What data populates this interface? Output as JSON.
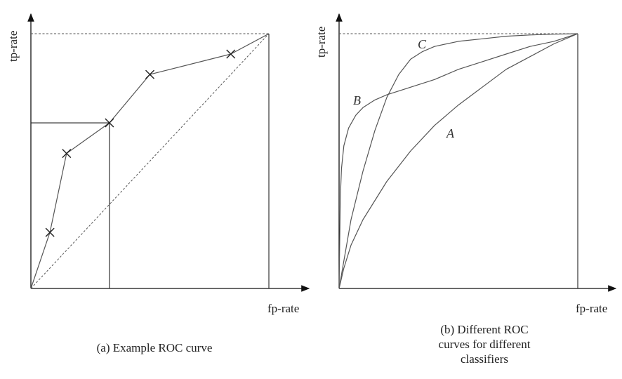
{
  "chart_data": [
    {
      "type": "line",
      "caption": "(a) Example ROC curve",
      "xlabel": "fp-rate",
      "ylabel": "tp-rate",
      "xlim": [
        0,
        1
      ],
      "ylim": [
        0,
        1
      ],
      "grid": false,
      "series": [
        {
          "x": [
            0,
            0.08,
            0.15,
            0.33,
            0.5,
            0.84,
            1.0
          ],
          "y": [
            0,
            0.22,
            0.53,
            0.65,
            0.84,
            0.92,
            1.0
          ],
          "markers": [
            false,
            true,
            true,
            true,
            true,
            true,
            false
          ]
        }
      ],
      "annotations": [
        {
          "type": "diagonal",
          "from": [
            0,
            0
          ],
          "to": [
            1,
            1
          ],
          "style": "dashed"
        },
        {
          "type": "operating-point-box",
          "x": 0.33,
          "y": 0.65
        },
        {
          "type": "top-reference-line",
          "y": 1,
          "style": "dashed"
        },
        {
          "type": "right-reference-line",
          "x": 1,
          "style": "solid"
        }
      ]
    },
    {
      "type": "line",
      "caption": "(b) Different ROC curves for different classifiers",
      "caption_lines": [
        "(b) Different ROC",
        "curves for different",
        "classifiers"
      ],
      "xlabel": "fp-rate",
      "ylabel": "tp-rate",
      "xlim": [
        0,
        1
      ],
      "ylim": [
        0,
        1
      ],
      "grid": false,
      "series": [
        {
          "name": "A",
          "x": [
            0,
            0.02,
            0.05,
            0.1,
            0.2,
            0.3,
            0.4,
            0.5,
            0.6,
            0.7,
            0.8,
            0.9,
            1.0
          ],
          "y": [
            0,
            0.08,
            0.17,
            0.27,
            0.42,
            0.54,
            0.64,
            0.72,
            0.79,
            0.86,
            0.91,
            0.96,
            1.0
          ]
        },
        {
          "name": "B",
          "x": [
            0,
            0.005,
            0.01,
            0.02,
            0.04,
            0.07,
            0.1,
            0.15,
            0.2,
            0.3,
            0.4,
            0.5,
            0.6,
            0.7,
            0.8,
            0.9,
            1.0
          ],
          "y": [
            0,
            0.35,
            0.47,
            0.56,
            0.63,
            0.68,
            0.71,
            0.74,
            0.76,
            0.79,
            0.82,
            0.86,
            0.89,
            0.92,
            0.95,
            0.97,
            1.0
          ]
        },
        {
          "name": "C",
          "x": [
            0,
            0.05,
            0.1,
            0.15,
            0.2,
            0.25,
            0.3,
            0.35,
            0.4,
            0.5,
            0.6,
            0.7,
            0.8,
            0.9,
            1.0
          ],
          "y": [
            0,
            0.27,
            0.46,
            0.62,
            0.75,
            0.84,
            0.9,
            0.93,
            0.95,
            0.97,
            0.98,
            0.99,
            0.995,
            0.998,
            1.0
          ]
        }
      ],
      "annotations": [
        {
          "type": "top-reference-line",
          "y": 1,
          "style": "dashed"
        },
        {
          "type": "right-reference-line",
          "x": 1,
          "style": "solid"
        }
      ]
    }
  ]
}
